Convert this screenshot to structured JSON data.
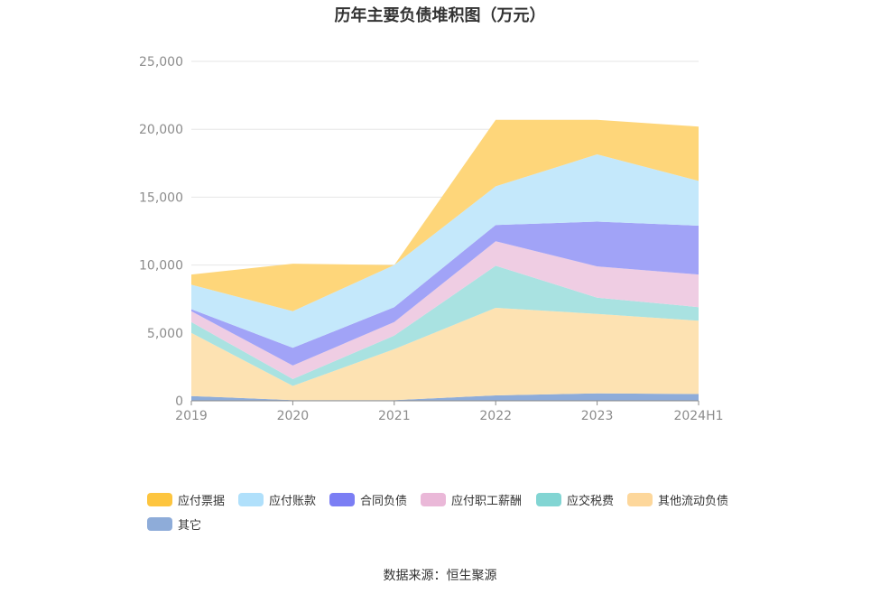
{
  "chart_data": {
    "type": "area",
    "title": "历年主要负债堆积图（万元）",
    "categories": [
      "2019",
      "2020",
      "2021",
      "2022",
      "2023",
      "2024H1"
    ],
    "ylim": [
      0,
      25000
    ],
    "yticks": [
      "0",
      "5,000",
      "10,000",
      "15,000",
      "20,000",
      "25,000"
    ],
    "grid": true,
    "legend_position": "bottom",
    "series": [
      {
        "name": "其它",
        "color": "#8eacd9",
        "values": [
          350,
          50,
          50,
          400,
          550,
          500
        ]
      },
      {
        "name": "其他流动负债",
        "color": "#fde2b2",
        "values": [
          4650,
          1050,
          3750,
          6450,
          5850,
          5400
        ]
      },
      {
        "name": "应交税费",
        "color": "#a9e2e1",
        "values": [
          800,
          500,
          1000,
          3100,
          1200,
          1000
        ]
      },
      {
        "name": "应付职工薪酬",
        "color": "#efcde3",
        "values": [
          800,
          1000,
          1000,
          1800,
          2300,
          2400
        ]
      },
      {
        "name": "合同负债",
        "color": "#a1a3f7",
        "values": [
          150,
          1300,
          1100,
          1200,
          3300,
          3600
        ]
      },
      {
        "name": "应付账款",
        "color": "#c4e8fb",
        "values": [
          1800,
          2700,
          3100,
          2850,
          4950,
          3300
        ]
      },
      {
        "name": "应付票据",
        "color": "#fed67a",
        "values": [
          750,
          3500,
          0,
          4900,
          2550,
          4000
        ]
      }
    ]
  },
  "legend": [
    {
      "label": "应付票据",
      "color": "#fdc53f"
    },
    {
      "label": "应付账款",
      "color": "#b0e0fb"
    },
    {
      "label": "合同负债",
      "color": "#7b7ef4"
    },
    {
      "label": "应付职工薪酬",
      "color": "#eab8d8"
    },
    {
      "label": "应交税费",
      "color": "#82d5d3"
    },
    {
      "label": "其他流动负债",
      "color": "#fdd79b"
    },
    {
      "label": "其它",
      "color": "#8eacd9"
    }
  ],
  "source": "数据来源：恒生聚源"
}
